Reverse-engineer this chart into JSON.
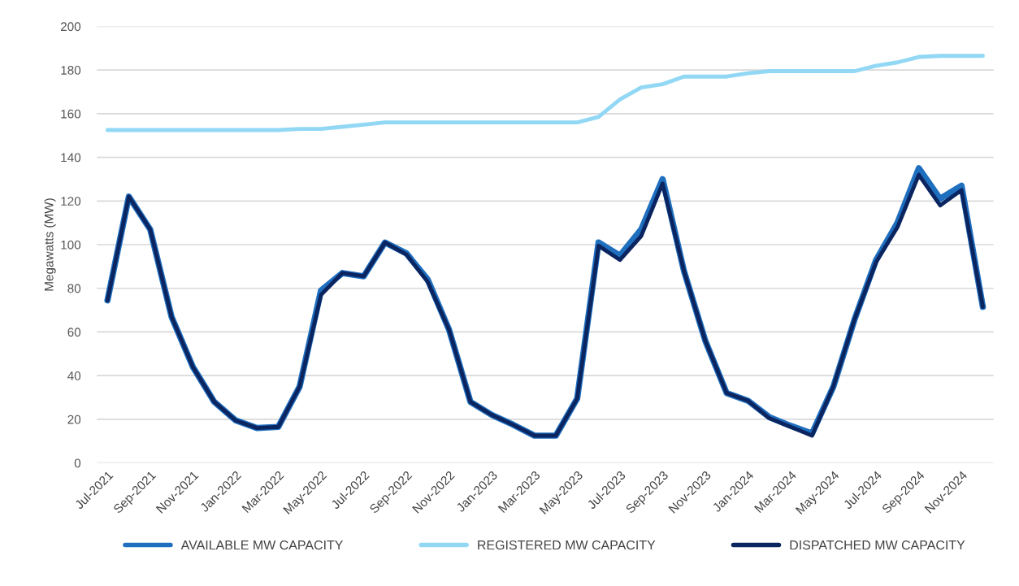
{
  "chart_data": {
    "type": "line",
    "ylabel": "Megawatts (MW)",
    "categories": [
      "Jul-2021",
      null,
      "Sep-2021",
      null,
      "Nov-2021",
      null,
      "Jan-2022",
      null,
      "Mar-2022",
      null,
      "May-2022",
      null,
      "Jul-2022",
      null,
      "Sep-2022",
      null,
      "Nov-2022",
      null,
      "Jan-2023",
      null,
      "Mar-2023",
      null,
      "May-2023",
      null,
      "Jul-2023",
      null,
      "Sep-2023",
      null,
      "Nov-2023",
      null,
      "Jan-2024",
      null,
      "Mar-2024",
      null,
      "May-2024",
      null,
      "Jul-2024",
      null,
      "Sep-2024",
      null,
      "Nov-2024",
      null
    ],
    "series": [
      {
        "name": "AVAILABLE MW CAPACITY",
        "color": "#1f6fbf",
        "values": [
          74.5,
          122,
          107,
          67,
          44,
          28,
          19.5,
          16,
          16.5,
          35,
          79,
          87,
          85.5,
          101,
          96,
          84,
          61,
          28,
          22,
          17.5,
          12.5,
          12.5,
          29.5,
          101,
          95,
          107,
          130,
          88,
          56,
          32,
          28.5,
          21,
          17,
          13.5,
          35,
          66,
          93,
          110,
          135,
          121,
          127,
          71.5
        ]
      },
      {
        "name": "REGISTERED MW CAPACITY",
        "color": "#92d8f5",
        "values": [
          152.5,
          152.5,
          152.5,
          152.5,
          152.5,
          152.5,
          152.5,
          152.5,
          152.5,
          153,
          153,
          154,
          155,
          156,
          156,
          156,
          156,
          156,
          156,
          156,
          156,
          156,
          156,
          158.5,
          166.5,
          172,
          173.5,
          177,
          177,
          177,
          178.5,
          179.5,
          179.5,
          179.5,
          179.5,
          179.5,
          182,
          183.5,
          186,
          186.5,
          186.5,
          186.5
        ]
      },
      {
        "name": "DISPATCHED MW CAPACITY",
        "color": "#0b2560",
        "values": [
          74.5,
          122,
          107,
          67,
          44,
          28,
          19.5,
          16,
          16.5,
          35,
          77,
          87,
          85.5,
          101,
          95.5,
          83,
          61,
          28,
          22,
          17.5,
          12.5,
          12.5,
          29.5,
          99.5,
          93,
          104,
          128,
          88,
          56,
          32,
          28.5,
          20.5,
          16.5,
          12.5,
          35,
          66,
          92,
          108,
          132,
          118,
          125,
          71.5
        ]
      }
    ],
    "ylim": [
      0,
      200
    ],
    "yticks": [
      0,
      20,
      40,
      60,
      80,
      100,
      120,
      140,
      160,
      180,
      200
    ],
    "grid": "y",
    "legend": "bottom",
    "marker": "none",
    "line_style": "solid"
  }
}
